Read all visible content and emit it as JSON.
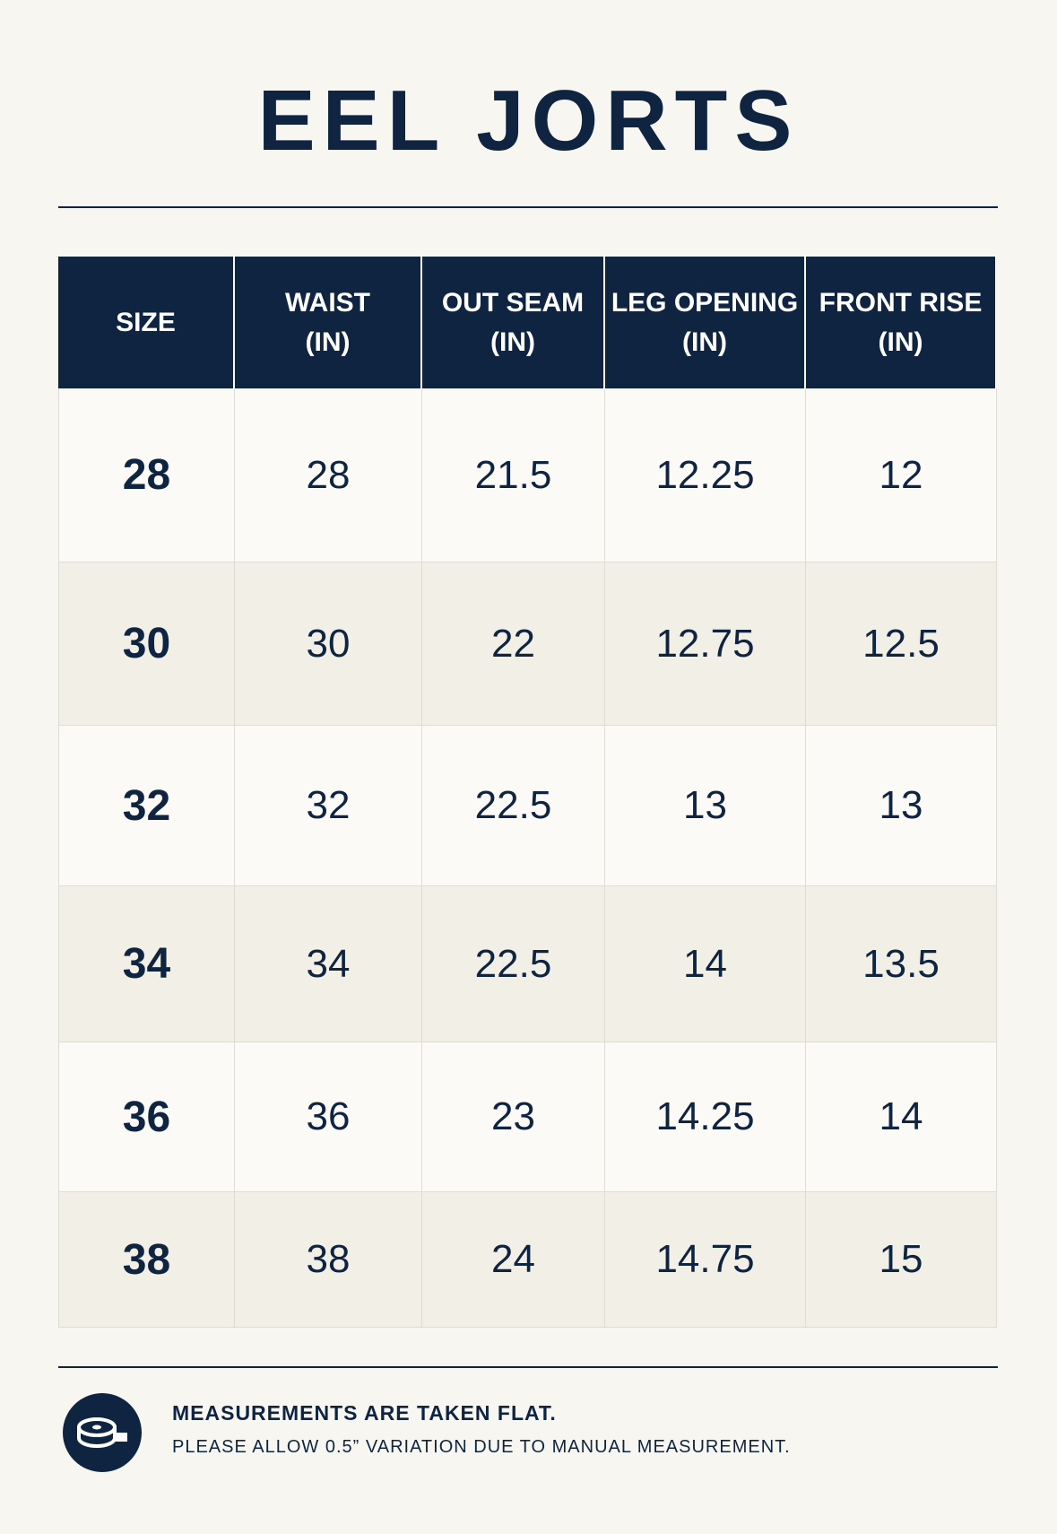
{
  "header": {
    "title": "EEL JORTS"
  },
  "table": {
    "columns": [
      "SIZE",
      "WAIST\n(IN)",
      "OUT SEAM\n(IN)",
      "LEG OPENING\n(IN)",
      "FRONT RISE\n(IN)"
    ],
    "rows": [
      [
        "28",
        "28",
        "21.5",
        "12.25",
        "12"
      ],
      [
        "30",
        "30",
        "22",
        "12.75",
        "12.5"
      ],
      [
        "32",
        "32",
        "22.5",
        "13",
        "13"
      ],
      [
        "34",
        "34",
        "22.5",
        "14",
        "13.5"
      ],
      [
        "36",
        "36",
        "23",
        "14.25",
        "14"
      ],
      [
        "38",
        "38",
        "24",
        "14.75",
        "15"
      ]
    ]
  },
  "footer": {
    "note": "MEASUREMENTS ARE TAKEN FLAT.",
    "subnote": "PLEASE ALLOW 0.5” VARIATION DUE TO MANUAL MEASUREMENT."
  }
}
